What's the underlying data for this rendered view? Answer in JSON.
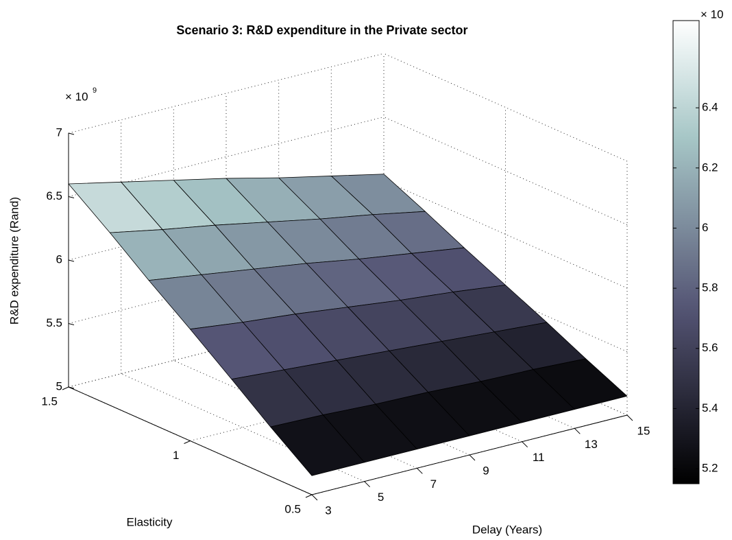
{
  "chart_data": {
    "type": "surface",
    "title": "Scenario 3: R&D expenditure in the Private sector",
    "xlabel": "Delay (Years)",
    "ylabel": "Elasticity",
    "zlabel": "R&D expenditure (Rand)",
    "z_multiplier": "× 10",
    "z_exponent": "9",
    "x": [
      3,
      5,
      7,
      9,
      11,
      13,
      15
    ],
    "y": [
      0.5,
      0.67,
      0.83,
      1,
      1.17,
      1.33,
      1.5
    ],
    "z": [
      [
        5.15,
        5.15,
        5.15,
        5.15,
        5.15,
        5.15,
        5.15
      ],
      [
        5.39,
        5.38,
        5.36,
        5.35,
        5.33,
        5.32,
        5.3
      ],
      [
        5.63,
        5.6,
        5.57,
        5.54,
        5.51,
        5.48,
        5.45
      ],
      [
        5.88,
        5.83,
        5.79,
        5.74,
        5.69,
        5.65,
        5.6
      ],
      [
        6.12,
        6.06,
        6.0,
        5.94,
        5.87,
        5.81,
        5.75
      ],
      [
        6.36,
        6.28,
        6.21,
        6.13,
        6.05,
        5.98,
        5.9
      ],
      [
        6.6,
        6.51,
        6.42,
        6.33,
        6.23,
        6.14,
        6.05
      ]
    ],
    "xlim": [
      3,
      15
    ],
    "ylim": [
      0.5,
      1.5
    ],
    "zlim": [
      5,
      7
    ],
    "xticks": [
      3,
      5,
      7,
      9,
      11,
      13,
      15
    ],
    "yticks": [
      0.5,
      1,
      1.5
    ],
    "zticks": [
      5,
      5.5,
      6,
      6.5,
      7
    ],
    "grid": true,
    "colormap": "bone",
    "colorbar": {
      "clim": [
        5.15,
        6.69
      ],
      "ticks": [
        5.2,
        5.4,
        5.6,
        5.8,
        6,
        6.2,
        6.4
      ],
      "multiplier": "× 10"
    }
  }
}
